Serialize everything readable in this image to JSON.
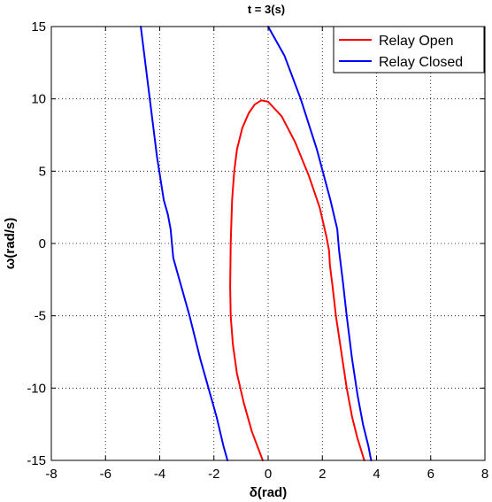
{
  "chart_data": {
    "type": "line",
    "title": "t = 3(s)",
    "xlabel": "δ(rad)",
    "ylabel": "ω(rad/s)",
    "xlim": [
      -8,
      8
    ],
    "ylim": [
      -15,
      15
    ],
    "xticks": [
      -8,
      -6,
      -4,
      -2,
      0,
      2,
      4,
      6,
      8
    ],
    "yticks": [
      -15,
      -10,
      -5,
      0,
      5,
      10,
      15
    ],
    "xtick_labels": [
      "-8",
      "-6",
      "-4",
      "-2",
      "0",
      "2",
      "4",
      "6",
      "8"
    ],
    "ytick_labels": [
      "-15",
      "-10",
      "-5",
      "0",
      "5",
      "10",
      "15"
    ],
    "grid": true,
    "legend_position": "top-right",
    "legend": [
      "Relay Open",
      "Relay Closed"
    ],
    "series": [
      {
        "name": "Relay Open",
        "color": "#ff0000",
        "x": [
          -0.2,
          -0.6,
          -0.9,
          -1.15,
          -1.3,
          -1.38,
          -1.4,
          -1.38,
          -1.33,
          -1.25,
          -1.15,
          -0.95,
          -0.72,
          -0.5,
          -0.25
        ],
        "y": [
          -15,
          -13,
          -11,
          -9,
          -7,
          -5,
          -3,
          0,
          3,
          5,
          6.5,
          8,
          9,
          9.6,
          9.9
        ]
      },
      {
        "name": "Relay Open",
        "color": "#ff0000",
        "x": [
          -0.25,
          0,
          0.5,
          1.0,
          1.5,
          1.9,
          2.15,
          2.25,
          2.28,
          2.38,
          2.5,
          2.7,
          2.9,
          3.1,
          3.3,
          3.55
        ],
        "y": [
          9.9,
          9.8,
          8.8,
          7.0,
          4.7,
          2.5,
          0.5,
          -0.5,
          -1.5,
          -3.0,
          -5.0,
          -7.5,
          -10,
          -12,
          -13.5,
          -15
        ]
      },
      {
        "name": "Relay Closed",
        "color": "#0000ff",
        "x": [
          -4.7,
          -4.5,
          -4.3,
          -4.1,
          -3.85,
          -3.7,
          -3.6,
          -3.55,
          -3.5,
          -3.2,
          -2.9,
          -2.5,
          -2.2,
          -1.9,
          -1.65,
          -1.5
        ],
        "y": [
          15,
          12,
          9,
          6,
          3,
          2,
          1,
          0,
          -1,
          -3,
          -5,
          -8,
          -10,
          -12,
          -14,
          -15
        ]
      },
      {
        "name": "Relay Closed",
        "color": "#0000ff",
        "x": [
          0,
          0.6,
          1.2,
          1.8,
          2.3,
          2.55,
          2.62,
          2.75,
          2.9,
          3.1,
          3.3,
          3.5,
          3.7,
          3.8
        ],
        "y": [
          15,
          13,
          10,
          6.5,
          3,
          1,
          -0.5,
          -2.5,
          -5,
          -8,
          -10.5,
          -12.5,
          -14,
          -15
        ]
      }
    ]
  }
}
